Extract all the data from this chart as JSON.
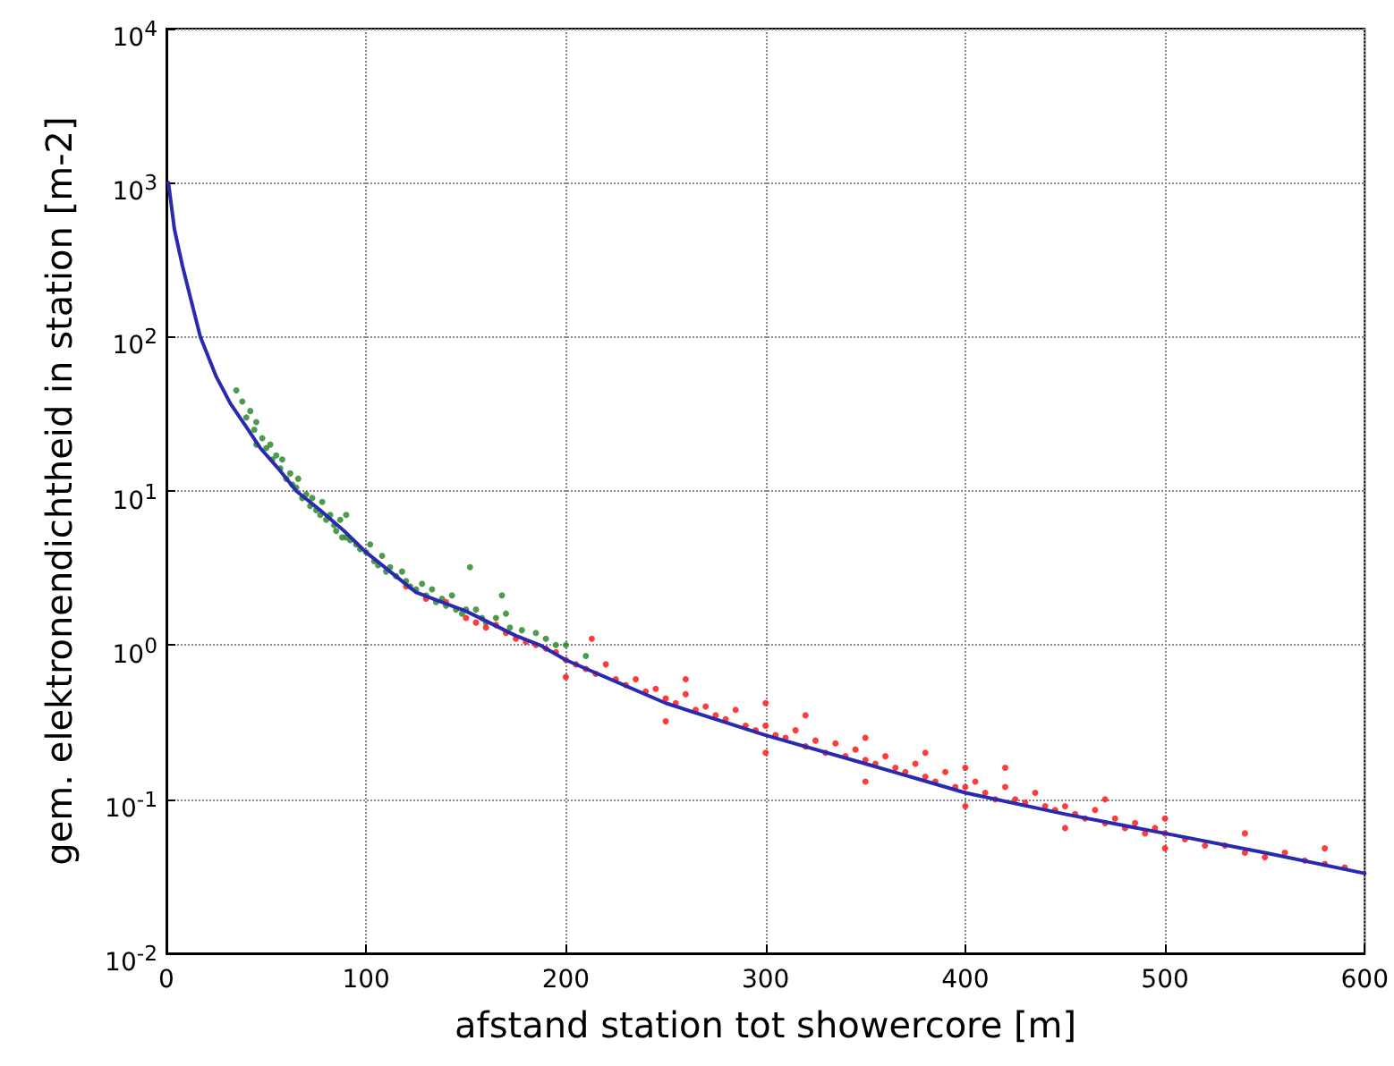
{
  "chart_data": {
    "type": "scatter",
    "xlabel": "afstand station tot showercore [m]",
    "ylabel": "gem. elektronendichtheid in station [m-2]",
    "log": "y",
    "grid": true,
    "xlim": [
      0,
      600
    ],
    "xticks": [
      0,
      100,
      200,
      300,
      400,
      500,
      600
    ],
    "ylim": [
      0.01,
      10000
    ],
    "yticks": [
      {
        "value": 0.01,
        "label": "10$^{-2}$"
      },
      {
        "value": 0.1,
        "label": "10$^{-1}$"
      },
      {
        "value": 1,
        "label": "10$^{0}$"
      },
      {
        "value": 10,
        "label": "10$^{1}$"
      },
      {
        "value": 100,
        "label": "10$^{2}$"
      },
      {
        "value": 1000,
        "label": "10$^{3}$"
      },
      {
        "value": 10000,
        "label": "10$^{4}$"
      }
    ],
    "series": [
      {
        "type": "scatter",
        "marker": "circle",
        "color": "#2e8b2e",
        "x": [
          35,
          38,
          40,
          42,
          44,
          45,
          45,
          48,
          50,
          52,
          53,
          55,
          57,
          58,
          60,
          62,
          63,
          65,
          66,
          68,
          70,
          72,
          73,
          75,
          77,
          78,
          80,
          82,
          84,
          85,
          87,
          88,
          90,
          90,
          92,
          95,
          97,
          100,
          102,
          104,
          106,
          108,
          110,
          112,
          115,
          118,
          120,
          122,
          125,
          128,
          130,
          133,
          135,
          138,
          140,
          143,
          145,
          148,
          150,
          152,
          155,
          158,
          160,
          165,
          168,
          170,
          172,
          178,
          185,
          190,
          195,
          200,
          210
        ],
        "values": [
          45,
          38,
          30,
          33,
          25,
          28,
          20,
          22,
          19,
          20,
          16,
          17,
          14,
          16,
          12,
          13,
          11,
          10.5,
          12,
          9,
          9.5,
          8,
          9,
          7.5,
          7,
          8.5,
          6.5,
          7,
          6,
          5.5,
          6.5,
          5,
          5,
          7,
          4.8,
          4.5,
          4.2,
          4,
          4.5,
          3.5,
          3.3,
          3.8,
          3,
          3.2,
          2.8,
          3,
          2.6,
          2.4,
          2.3,
          2.5,
          2.1,
          2.3,
          1.9,
          2,
          1.8,
          2.1,
          1.7,
          1.6,
          1.7,
          3.2,
          1.7,
          1.5,
          1.4,
          1.5,
          2.1,
          1.6,
          1.3,
          1.25,
          1.2,
          1.1,
          1,
          1,
          0.85
        ]
      },
      {
        "type": "scatter",
        "marker": "circle",
        "color": "#ff1a1a",
        "x": [
          120,
          130,
          140,
          150,
          155,
          160,
          165,
          170,
          175,
          180,
          185,
          190,
          195,
          200,
          200,
          205,
          210,
          213,
          215,
          220,
          225,
          230,
          235,
          240,
          245,
          250,
          250,
          255,
          260,
          260,
          265,
          270,
          275,
          280,
          285,
          290,
          295,
          300,
          300,
          300,
          305,
          310,
          315,
          320,
          320,
          325,
          330,
          335,
          340,
          345,
          350,
          350,
          350,
          355,
          360,
          365,
          370,
          375,
          380,
          380,
          385,
          390,
          395,
          400,
          400,
          400,
          405,
          410,
          415,
          420,
          420,
          425,
          430,
          435,
          440,
          445,
          450,
          450,
          455,
          460,
          465,
          470,
          470,
          475,
          480,
          485,
          490,
          495,
          500,
          500,
          500,
          510,
          520,
          530,
          540,
          540,
          550,
          560,
          570,
          580,
          580,
          590
        ],
        "values": [
          2.4,
          2,
          1.9,
          1.5,
          1.4,
          1.3,
          1.35,
          1.2,
          1.1,
          1.05,
          1,
          0.95,
          0.9,
          0.8,
          0.62,
          0.75,
          0.7,
          1.1,
          0.65,
          0.75,
          0.6,
          0.55,
          0.6,
          0.5,
          0.52,
          0.45,
          0.32,
          0.42,
          0.48,
          0.6,
          0.38,
          0.4,
          0.35,
          0.33,
          0.38,
          0.3,
          0.28,
          0.3,
          0.2,
          0.42,
          0.26,
          0.25,
          0.28,
          0.22,
          0.35,
          0.24,
          0.2,
          0.23,
          0.19,
          0.21,
          0.18,
          0.25,
          0.13,
          0.17,
          0.19,
          0.16,
          0.15,
          0.17,
          0.14,
          0.2,
          0.13,
          0.15,
          0.12,
          0.12,
          0.16,
          0.09,
          0.13,
          0.11,
          0.1,
          0.12,
          0.16,
          0.1,
          0.095,
          0.11,
          0.09,
          0.085,
          0.09,
          0.065,
          0.08,
          0.075,
          0.085,
          0.07,
          0.1,
          0.075,
          0.065,
          0.07,
          0.06,
          0.065,
          0.06,
          0.075,
          0.048,
          0.055,
          0.05,
          0.05,
          0.045,
          0.06,
          0.042,
          0.045,
          0.04,
          0.038,
          0.048,
          0.036
        ]
      },
      {
        "type": "line",
        "marker": "none",
        "color": "#2a2ab0",
        "x": [
          1,
          4,
          8,
          13,
          17,
          25,
          32,
          40,
          47,
          56,
          65,
          77,
          89,
          100,
          125,
          150,
          175,
          187,
          200,
          250,
          300,
          350,
          400,
          450,
          500,
          550,
          600
        ],
        "values": [
          1000,
          500,
          290,
          160,
          100,
          55,
          37,
          26,
          19,
          14,
          10,
          7.5,
          5.5,
          4,
          2.2,
          1.66,
          1.15,
          1,
          0.8,
          0.42,
          0.26,
          0.17,
          0.11,
          0.08,
          0.06,
          0.045,
          0.033
        ]
      }
    ]
  }
}
